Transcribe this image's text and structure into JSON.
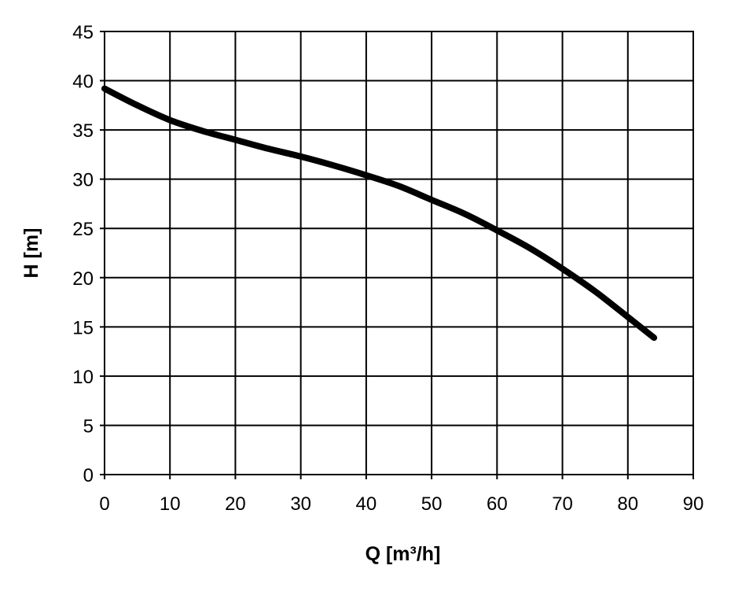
{
  "chart_data": {
    "type": "line",
    "title": "",
    "xlabel": "Q [m³/h]",
    "ylabel": "H [m]",
    "xlim": [
      0,
      90
    ],
    "ylim": [
      0,
      45
    ],
    "xticks": [
      "0",
      "10",
      "20",
      "30",
      "40",
      "50",
      "60",
      "70",
      "80",
      "90"
    ],
    "yticks": [
      "0",
      "5",
      "10",
      "15",
      "20",
      "25",
      "30",
      "35",
      "40",
      "45"
    ],
    "grid": true,
    "legend": "none",
    "series": [
      {
        "color": "#000000",
        "x": [
          0,
          5,
          10,
          15,
          20,
          25,
          30,
          35,
          40,
          45,
          50,
          55,
          60,
          65,
          70,
          75,
          80,
          84
        ],
        "y": [
          39.2,
          37.5,
          36.0,
          34.9,
          34.0,
          33.1,
          32.3,
          31.4,
          30.4,
          29.3,
          27.9,
          26.5,
          24.8,
          23.0,
          20.9,
          18.6,
          16.0,
          13.9
        ]
      }
    ]
  }
}
